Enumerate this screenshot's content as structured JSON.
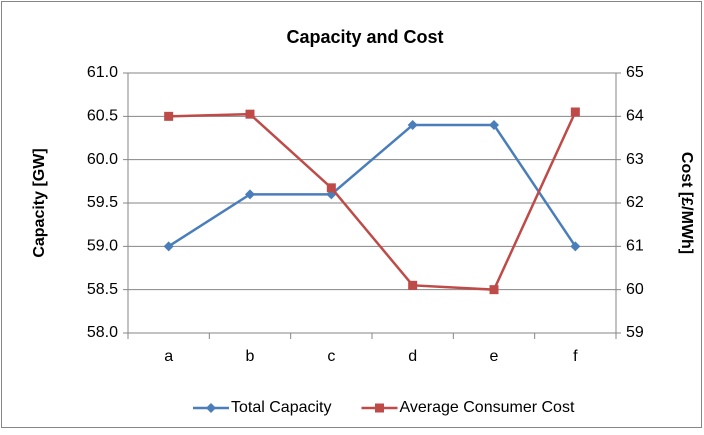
{
  "chart_data": {
    "type": "line",
    "title": "Capacity and Cost",
    "categories": [
      "a",
      "b",
      "c",
      "d",
      "e",
      "f"
    ],
    "ylabel": "Capacity [GW]",
    "y2label": "Cost [£/MWh]",
    "ylim": [
      58,
      61
    ],
    "yticks": [
      {
        "value": 58,
        "label": "58.0"
      },
      58.5,
      {
        "value": 59,
        "label": "59.0"
      },
      59.5,
      {
        "value": 60,
        "label": "60.0"
      },
      60.5,
      {
        "value": 61,
        "label": "61.0"
      }
    ],
    "y2lim": [
      59,
      65
    ],
    "y2ticks": [
      59,
      60,
      61,
      62,
      63,
      64,
      65
    ],
    "grid": true,
    "legend": "bottom",
    "series": [
      {
        "name": "Total Capacity",
        "color": "#4a7ebb",
        "marker": "diamond",
        "values": [
          59.0,
          59.6,
          59.6,
          60.4,
          60.4,
          59.0
        ]
      },
      {
        "name": "Average Consumer Cost",
        "color": "#be4b48",
        "marker": "square",
        "axis": "y2",
        "values": [
          64.0,
          64.05,
          62.35,
          60.1,
          60.0,
          64.1
        ]
      }
    ]
  }
}
